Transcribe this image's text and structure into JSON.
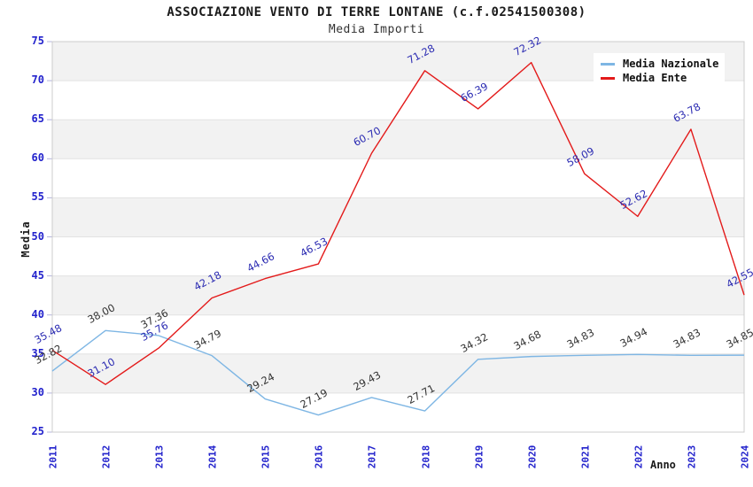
{
  "colors": {
    "background": "#ffffff",
    "plot_border": "#cccccc",
    "gridline": "#e2e2e2",
    "band": "#f2f2f2",
    "tick_text": "#2222cc",
    "tick_mark": "#b4b4dd",
    "title_text": "#1a1a1a",
    "legend_bg": "#ffffff"
  },
  "chart_data": {
    "type": "line",
    "title": "ASSOCIAZIONE VENTO DI TERRE LONTANE (c.f.02541500308)",
    "subtitle": "Media Importi",
    "xlabel": "Anno",
    "ylabel": "Media",
    "ylim": [
      25,
      75
    ],
    "y_ticks": [
      25,
      30,
      35,
      40,
      45,
      50,
      55,
      60,
      65,
      70,
      75
    ],
    "grid": "horizontal-gridlines-with-alternating-bands",
    "legend_position": "top-right",
    "categories": [
      "2011",
      "2012",
      "2013",
      "2014",
      "2015",
      "2016",
      "2017",
      "2018",
      "2019",
      "2020",
      "2021",
      "2022",
      "2023",
      "2024"
    ],
    "series": [
      {
        "name": "Media Nazionale",
        "color": "#7eb6e4",
        "label_color": "#333333",
        "values": [
          32.82,
          38.0,
          37.36,
          34.79,
          29.24,
          27.19,
          29.43,
          27.71,
          34.32,
          34.68,
          34.83,
          34.94,
          34.83,
          34.85
        ]
      },
      {
        "name": "Media Ente",
        "color": "#e31a1a",
        "label_color": "#2b2bb2",
        "values": [
          35.48,
          31.1,
          35.76,
          42.18,
          44.66,
          46.53,
          60.7,
          71.28,
          66.39,
          72.32,
          58.09,
          52.62,
          63.78,
          42.55
        ]
      }
    ]
  }
}
